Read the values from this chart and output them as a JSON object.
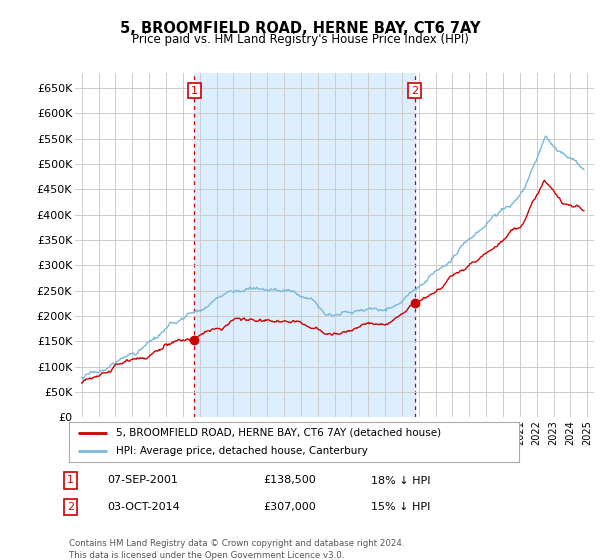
{
  "title": "5, BROOMFIELD ROAD, HERNE BAY, CT6 7AY",
  "subtitle": "Price paid vs. HM Land Registry's House Price Index (HPI)",
  "legend_line1": "5, BROOMFIELD ROAD, HERNE BAY, CT6 7AY (detached house)",
  "legend_line2": "HPI: Average price, detached house, Canterbury",
  "annotation1_date": "07-SEP-2001",
  "annotation1_price": "£138,500",
  "annotation1_hpi": "18% ↓ HPI",
  "annotation2_date": "03-OCT-2014",
  "annotation2_price": "£307,000",
  "annotation2_hpi": "15% ↓ HPI",
  "footnote": "Contains HM Land Registry data © Crown copyright and database right 2024.\nThis data is licensed under the Open Government Licence v3.0.",
  "hpi_color": "#7ab8d9",
  "price_color": "#cc0000",
  "shade_color": "#ddeeff",
  "vline_color": "#cc0000",
  "grid_color": "#cccccc",
  "bg_color": "#ffffff",
  "ylim": [
    0,
    680000
  ],
  "yticks": [
    0,
    50000,
    100000,
    150000,
    200000,
    250000,
    300000,
    350000,
    400000,
    450000,
    500000,
    550000,
    600000,
    650000
  ],
  "sale1_year": 2001.69,
  "sale1_value": 138500,
  "sale2_year": 2014.75,
  "sale2_value": 307000,
  "xlim_left": 1994.6,
  "xlim_right": 2025.4
}
